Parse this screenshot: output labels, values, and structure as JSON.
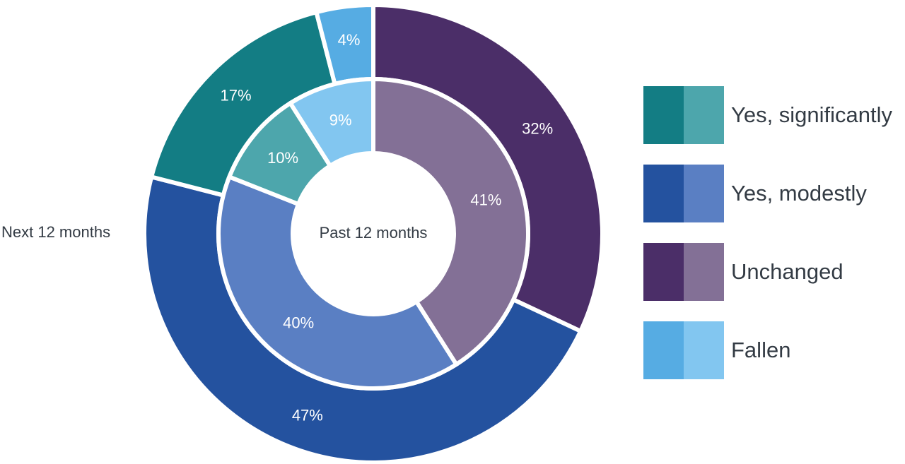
{
  "chart_data": {
    "type": "donut",
    "outer_ring": {
      "label": "Next 12 months",
      "segments": [
        {
          "category": "Unchanged",
          "value": 32,
          "label": "32%",
          "color": "#4b2e68"
        },
        {
          "category": "Yes, modestly",
          "value": 47,
          "label": "47%",
          "color": "#24529f"
        },
        {
          "category": "Yes, significantly",
          "value": 17,
          "label": "17%",
          "color": "#137d84"
        },
        {
          "category": "Fallen",
          "value": 4,
          "label": "4%",
          "color": "#56ace3"
        }
      ]
    },
    "inner_ring": {
      "label": "Past 12 months",
      "segments": [
        {
          "category": "Unchanged",
          "value": 41,
          "label": "41%",
          "color": "#837096"
        },
        {
          "category": "Yes, modestly",
          "value": 40,
          "label": "40%",
          "color": "#5a7fc3"
        },
        {
          "category": "Yes, significantly",
          "value": 10,
          "label": "10%",
          "color": "#4da6ac"
        },
        {
          "category": "Fallen",
          "value": 9,
          "label": "9%",
          "color": "#82c6f0"
        }
      ]
    },
    "legend": {
      "placement": "right",
      "items": [
        {
          "label": "Yes, significantly",
          "colors": [
            "#137d84",
            "#4da6ac"
          ]
        },
        {
          "label": "Yes, modestly",
          "colors": [
            "#24529f",
            "#5a7fc3"
          ]
        },
        {
          "label": "Unchanged",
          "colors": [
            "#4b2e68",
            "#837096"
          ]
        },
        {
          "label": "Fallen",
          "colors": [
            "#56ace3",
            "#82c6f0"
          ]
        }
      ]
    }
  }
}
